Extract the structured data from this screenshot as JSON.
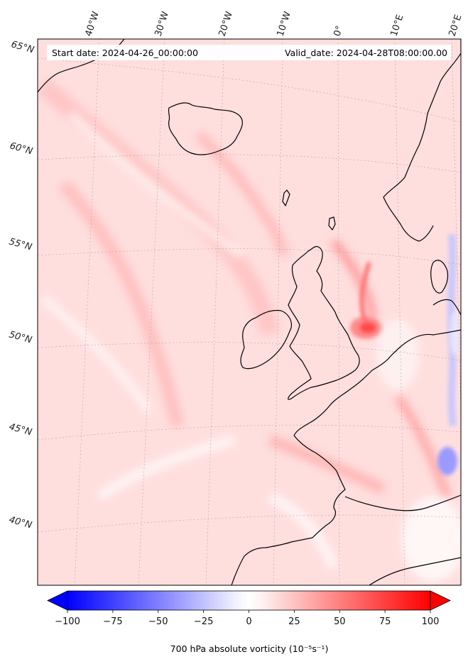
{
  "header": {
    "start_date": "Start date: 2024-04-26_00:00:00",
    "valid_date": "Valid_date: 2024-04-28T08:00:00.00"
  },
  "map": {
    "projection": "lambert-conformal",
    "longitude_labels": [
      "40°W",
      "30°W",
      "20°W",
      "10°W",
      "0°",
      "10°E",
      "20°E"
    ],
    "latitude_labels": [
      "65°N",
      "60°N",
      "55°N",
      "50°N",
      "45°N",
      "40°N"
    ],
    "gridlines": true,
    "field_colors": {
      "negative": "#0000ff",
      "zero": "#ffffff",
      "positive": "#ff0000"
    },
    "coastline_color": "#000000"
  },
  "colorbar": {
    "ticks": [
      "−100",
      "−75",
      "−50",
      "−25",
      "0",
      "25",
      "50",
      "75",
      "100"
    ],
    "range": [
      -100,
      100
    ],
    "extend": "both",
    "label": "700 hPa absolute vorticity (10⁻⁵s⁻¹)"
  }
}
